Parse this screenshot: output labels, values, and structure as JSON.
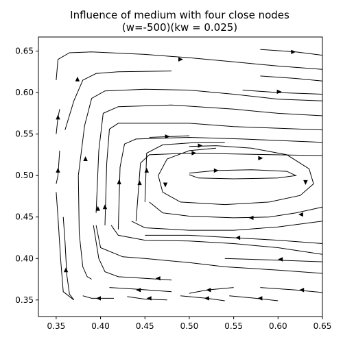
{
  "chart_data": {
    "type": "streamplot",
    "title_lines": [
      "Influence of medium with four close nodes",
      "(w=-500)(kw = 0.025)"
    ],
    "xlabel": "",
    "ylabel": "",
    "xlim": [
      0.33,
      0.65
    ],
    "ylim": [
      0.33,
      0.667
    ],
    "x_ticks": [
      0.35,
      0.4,
      0.45,
      0.5,
      0.55,
      0.6,
      0.65
    ],
    "x_tick_labels": [
      "0.35",
      "0.40",
      "0.45",
      "0.50",
      "0.55",
      "0.60",
      "0.65"
    ],
    "y_ticks": [
      0.35,
      0.4,
      0.45,
      0.5,
      0.55,
      0.6,
      0.65
    ],
    "y_tick_labels": [
      "0.35",
      "0.40",
      "0.45",
      "0.50",
      "0.55",
      "0.60",
      "0.65"
    ],
    "grid": false,
    "line_color": "#000000",
    "streamlines": [
      {
        "name": "outer-loop",
        "points": [
          [
            0.35,
            0.615
          ],
          [
            0.352,
            0.64
          ],
          [
            0.365,
            0.648
          ],
          [
            0.39,
            0.649
          ],
          [
            0.45,
            0.646
          ],
          [
            0.5,
            0.642
          ],
          [
            0.55,
            0.637
          ],
          [
            0.6,
            0.632
          ],
          [
            0.65,
            0.628
          ]
        ],
        "arrows": [
          {
            "x": 0.49,
            "y": 0.64,
            "dir": "right"
          }
        ]
      },
      {
        "name": "top-right-1",
        "points": [
          [
            0.58,
            0.652
          ],
          [
            0.62,
            0.649
          ],
          [
            0.65,
            0.645
          ]
        ],
        "arrows": [
          {
            "x": 0.617,
            "y": 0.649,
            "dir": "right"
          }
        ]
      },
      {
        "name": "top-right-2",
        "points": [
          [
            0.58,
            0.62
          ],
          [
            0.62,
            0.617
          ],
          [
            0.65,
            0.614
          ]
        ],
        "arrows": []
      },
      {
        "name": "second-loop",
        "points": [
          [
            0.36,
            0.555
          ],
          [
            0.37,
            0.59
          ],
          [
            0.38,
            0.615
          ],
          [
            0.395,
            0.623
          ],
          [
            0.42,
            0.625
          ],
          [
            0.48,
            0.626
          ]
        ],
        "arrows": [
          {
            "x": 0.374,
            "y": 0.616,
            "dir": "up"
          }
        ]
      },
      {
        "name": "right-2",
        "points": [
          [
            0.56,
            0.603
          ],
          [
            0.6,
            0.6
          ],
          [
            0.65,
            0.598
          ]
        ],
        "arrows": [
          {
            "x": 0.601,
            "y": 0.601,
            "dir": "right"
          }
        ]
      },
      {
        "name": "loop-3",
        "points": [
          [
            0.375,
            0.5
          ],
          [
            0.382,
            0.56
          ],
          [
            0.39,
            0.593
          ],
          [
            0.405,
            0.602
          ],
          [
            0.45,
            0.604
          ],
          [
            0.5,
            0.603
          ],
          [
            0.55,
            0.598
          ],
          [
            0.6,
            0.592
          ],
          [
            0.65,
            0.59
          ]
        ],
        "arrows": [
          {
            "x": 0.383,
            "y": 0.52,
            "dir": "up"
          }
        ]
      },
      {
        "name": "loop-4",
        "points": [
          [
            0.395,
            0.455
          ],
          [
            0.398,
            0.53
          ],
          [
            0.403,
            0.575
          ],
          [
            0.42,
            0.583
          ],
          [
            0.48,
            0.585
          ],
          [
            0.55,
            0.58
          ],
          [
            0.6,
            0.575
          ],
          [
            0.65,
            0.572
          ]
        ],
        "arrows": [
          {
            "x": 0.397,
            "y": 0.46,
            "dir": "up"
          }
        ]
      },
      {
        "name": "loop-5",
        "points": [
          [
            0.405,
            0.44
          ],
          [
            0.407,
            0.515
          ],
          [
            0.41,
            0.556
          ],
          [
            0.42,
            0.563
          ],
          [
            0.5,
            0.563
          ],
          [
            0.55,
            0.559
          ],
          [
            0.65,
            0.555
          ]
        ],
        "arrows": [
          {
            "x": 0.405,
            "y": 0.462,
            "dir": "up"
          }
        ]
      },
      {
        "name": "loop-6",
        "points": [
          [
            0.42,
            0.435
          ],
          [
            0.422,
            0.51
          ],
          [
            0.427,
            0.538
          ],
          [
            0.44,
            0.544
          ],
          [
            0.5,
            0.546
          ],
          [
            0.56,
            0.544
          ],
          [
            0.65,
            0.54
          ]
        ],
        "arrows": [
          {
            "x": 0.421,
            "y": 0.492,
            "dir": "up"
          }
        ]
      },
      {
        "name": "loop-7",
        "points": [
          [
            0.44,
            0.445
          ],
          [
            0.445,
            0.515
          ],
          [
            0.455,
            0.525
          ],
          [
            0.5,
            0.527
          ],
          [
            0.65,
            0.524
          ]
        ],
        "arrows": [
          {
            "x": 0.444,
            "y": 0.491,
            "dir": "up"
          }
        ]
      },
      {
        "name": "loop-8-right",
        "points": [
          [
            0.45,
            0.468
          ],
          [
            0.452,
            0.527
          ],
          [
            0.47,
            0.537
          ],
          [
            0.51,
            0.54
          ],
          [
            0.54,
            0.54
          ]
        ],
        "arrows": [
          {
            "x": 0.452,
            "y": 0.506,
            "dir": "up"
          }
        ]
      },
      {
        "name": "short-arrow-0.545",
        "points": [
          [
            0.455,
            0.546
          ],
          [
            0.48,
            0.547
          ],
          [
            0.5,
            0.548
          ]
        ],
        "arrows": [
          {
            "x": 0.475,
            "y": 0.547,
            "dir": "right"
          }
        ]
      },
      {
        "name": "inner-ring",
        "points": [
          [
            0.5,
            0.535
          ],
          [
            0.53,
            0.536
          ],
          [
            0.57,
            0.533
          ],
          [
            0.61,
            0.525
          ],
          [
            0.635,
            0.508
          ],
          [
            0.64,
            0.49
          ],
          [
            0.625,
            0.476
          ],
          [
            0.59,
            0.468
          ],
          [
            0.54,
            0.465
          ],
          [
            0.49,
            0.468
          ],
          [
            0.47,
            0.48
          ],
          [
            0.465,
            0.5
          ],
          [
            0.475,
            0.52
          ],
          [
            0.5,
            0.53
          ],
          [
            0.53,
            0.533
          ]
        ],
        "arrows": [
          {
            "x": 0.512,
            "y": 0.536,
            "dir": "right"
          },
          {
            "x": 0.505,
            "y": 0.527,
            "dir": "right"
          },
          {
            "x": 0.58,
            "y": 0.521,
            "dir": "right"
          },
          {
            "x": 0.631,
            "y": 0.492,
            "dir": "down"
          },
          {
            "x": 0.473,
            "y": 0.489,
            "dir": "down"
          }
        ]
      },
      {
        "name": "innermost",
        "points": [
          [
            0.5,
            0.503
          ],
          [
            0.53,
            0.506
          ],
          [
            0.57,
            0.507
          ],
          [
            0.61,
            0.505
          ],
          [
            0.62,
            0.5
          ],
          [
            0.6,
            0.497
          ],
          [
            0.55,
            0.496
          ],
          [
            0.51,
            0.497
          ],
          [
            0.5,
            0.501
          ]
        ],
        "arrows": [
          {
            "x": 0.53,
            "y": 0.506,
            "dir": "right"
          }
        ]
      },
      {
        "name": "lower-inner-return",
        "points": [
          [
            0.65,
            0.462
          ],
          [
            0.62,
            0.455
          ],
          [
            0.59,
            0.45
          ],
          [
            0.55,
            0.449
          ],
          [
            0.5,
            0.451
          ],
          [
            0.47,
            0.455
          ],
          [
            0.455,
            0.468
          ]
        ],
        "arrows": [
          {
            "x": 0.626,
            "y": 0.453,
            "dir": "left"
          },
          {
            "x": 0.57,
            "y": 0.449,
            "dir": "left"
          }
        ]
      },
      {
        "name": "lower-1",
        "points": [
          [
            0.65,
            0.445
          ],
          [
            0.6,
            0.438
          ],
          [
            0.55,
            0.434
          ],
          [
            0.5,
            0.434
          ],
          [
            0.45,
            0.437
          ],
          [
            0.435,
            0.445
          ]
        ],
        "arrows": []
      },
      {
        "name": "lower-2",
        "points": [
          [
            0.65,
            0.418
          ],
          [
            0.6,
            0.422
          ],
          [
            0.55,
            0.425
          ],
          [
            0.5,
            0.428
          ],
          [
            0.45,
            0.428
          ]
        ],
        "arrows": [
          {
            "x": 0.555,
            "y": 0.425,
            "dir": "left"
          }
        ]
      },
      {
        "name": "lower-3",
        "points": [
          [
            0.65,
            0.405
          ],
          [
            0.6,
            0.413
          ],
          [
            0.55,
            0.418
          ],
          [
            0.5,
            0.421
          ],
          [
            0.45,
            0.422
          ],
          [
            0.42,
            0.428
          ],
          [
            0.412,
            0.44
          ]
        ],
        "arrows": []
      },
      {
        "name": "lower-4",
        "points": [
          [
            0.65,
            0.382
          ],
          [
            0.6,
            0.386
          ],
          [
            0.54,
            0.39
          ],
          [
            0.5,
            0.395
          ],
          [
            0.45,
            0.4
          ],
          [
            0.425,
            0.402
          ],
          [
            0.4,
            0.413
          ],
          [
            0.395,
            0.44
          ]
        ],
        "arrows": [
          {
            "x": 0.603,
            "y": 0.399,
            "dir": "left"
          }
        ]
      },
      {
        "name": "lower-5",
        "points": [
          [
            0.54,
            0.4
          ],
          [
            0.6,
            0.398
          ],
          [
            0.65,
            0.396
          ]
        ],
        "arrows": []
      },
      {
        "name": "lower-6",
        "points": [
          [
            0.48,
            0.374
          ],
          [
            0.45,
            0.376
          ],
          [
            0.42,
            0.378
          ],
          [
            0.405,
            0.384
          ],
          [
            0.398,
            0.4
          ],
          [
            0.392,
            0.44
          ]
        ],
        "arrows": [
          {
            "x": 0.465,
            "y": 0.376,
            "dir": "left"
          }
        ]
      },
      {
        "name": "left-lower-1",
        "points": [
          [
            0.39,
            0.375
          ],
          [
            0.385,
            0.378
          ],
          [
            0.38,
            0.39
          ],
          [
            0.376,
            0.43
          ],
          [
            0.375,
            0.5
          ]
        ],
        "arrows": []
      },
      {
        "name": "left-lower-2",
        "points": [
          [
            0.37,
            0.35
          ],
          [
            0.365,
            0.357
          ],
          [
            0.362,
            0.38
          ],
          [
            0.36,
            0.42
          ],
          [
            0.358,
            0.45
          ]
        ],
        "arrows": [
          {
            "x": 0.361,
            "y": 0.386,
            "dir": "up"
          }
        ]
      },
      {
        "name": "left-upper-1",
        "points": [
          [
            0.35,
            0.49
          ],
          [
            0.352,
            0.5
          ],
          [
            0.354,
            0.53
          ]
        ],
        "arrows": [
          {
            "x": 0.352,
            "y": 0.506,
            "dir": "up"
          }
        ]
      },
      {
        "name": "left-upper-2",
        "points": [
          [
            0.35,
            0.55
          ],
          [
            0.352,
            0.57
          ],
          [
            0.354,
            0.58
          ]
        ],
        "arrows": [
          {
            "x": 0.352,
            "y": 0.57,
            "dir": "up"
          }
        ]
      },
      {
        "name": "left-outer",
        "points": [
          [
            0.37,
            0.35
          ],
          [
            0.358,
            0.36
          ],
          [
            0.355,
            0.4
          ],
          [
            0.352,
            0.45
          ],
          [
            0.35,
            0.48
          ]
        ],
        "arrows": []
      },
      {
        "name": "bottom-1",
        "points": [
          [
            0.48,
            0.36
          ],
          [
            0.44,
            0.363
          ],
          [
            0.41,
            0.365
          ]
        ],
        "arrows": [
          {
            "x": 0.443,
            "y": 0.362,
            "dir": "left"
          }
        ]
      },
      {
        "name": "bottom-2",
        "points": [
          [
            0.55,
            0.365
          ],
          [
            0.52,
            0.362
          ],
          [
            0.5,
            0.358
          ]
        ],
        "arrows": [
          {
            "x": 0.522,
            "y": 0.362,
            "dir": "left"
          }
        ]
      },
      {
        "name": "bottom-3",
        "points": [
          [
            0.65,
            0.359
          ],
          [
            0.62,
            0.362
          ],
          [
            0.58,
            0.365
          ]
        ],
        "arrows": [
          {
            "x": 0.627,
            "y": 0.362,
            "dir": "left"
          }
        ]
      },
      {
        "name": "bottom-4",
        "points": [
          [
            0.415,
            0.352
          ],
          [
            0.39,
            0.352
          ],
          [
            0.38,
            0.355
          ]
        ],
        "arrows": [
          {
            "x": 0.398,
            "y": 0.352,
            "dir": "left"
          }
        ]
      },
      {
        "name": "bottom-5",
        "points": [
          [
            0.475,
            0.35
          ],
          [
            0.45,
            0.351
          ],
          [
            0.43,
            0.354
          ]
        ],
        "arrows": [
          {
            "x": 0.455,
            "y": 0.352,
            "dir": "left"
          }
        ]
      },
      {
        "name": "bottom-6",
        "points": [
          [
            0.54,
            0.349
          ],
          [
            0.52,
            0.352
          ],
          [
            0.49,
            0.355
          ]
        ],
        "arrows": [
          {
            "x": 0.52,
            "y": 0.352,
            "dir": "left"
          }
        ]
      },
      {
        "name": "bottom-7",
        "points": [
          [
            0.6,
            0.349
          ],
          [
            0.575,
            0.352
          ],
          [
            0.545,
            0.355
          ]
        ],
        "arrows": [
          {
            "x": 0.58,
            "y": 0.352,
            "dir": "left"
          }
        ]
      }
    ]
  }
}
